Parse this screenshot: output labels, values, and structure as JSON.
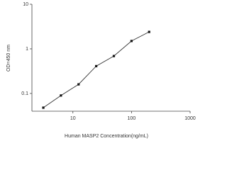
{
  "chart_data": {
    "type": "line",
    "x_label": "Human MASP2 Concentration(ng/mL)",
    "y_label": "OD=450 nm",
    "x": [
      3.13,
      6.25,
      12.5,
      25,
      50,
      100,
      200
    ],
    "series": [
      {
        "color": "#333333",
        "values": [
          0.048,
          0.09,
          0.16,
          0.41,
          0.69,
          1.5,
          2.4
        ]
      }
    ],
    "xlim": [
      2,
      1000
    ],
    "xticks": [
      10,
      100,
      1000
    ],
    "ylim": [
      0.04,
      10
    ],
    "yticks": [
      0.1,
      1,
      10
    ],
    "xscale": "log",
    "yscale": "log"
  }
}
